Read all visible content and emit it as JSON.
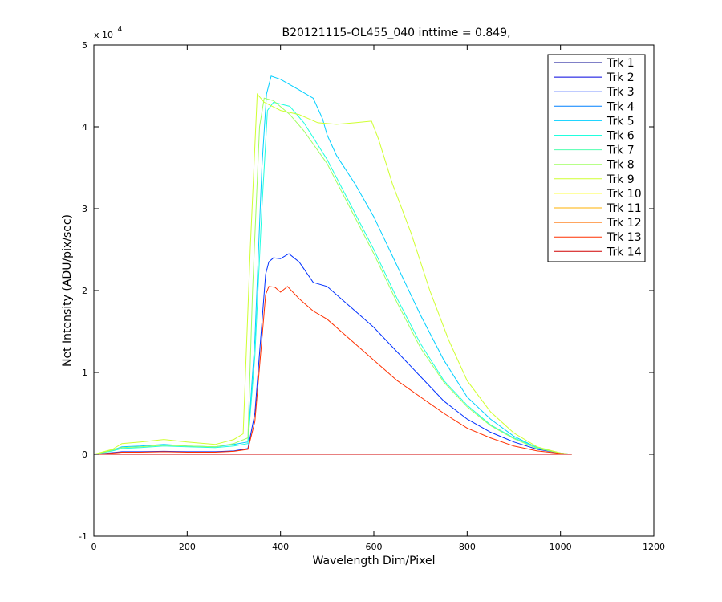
{
  "chart_data": {
    "type": "line",
    "title": "B20121115-OL455_040 inttime = 0.849,",
    "xlabel": "Wavelength Dim/Pixel",
    "ylabel": "Net Intensity (ADU/pix/sec)",
    "xlim": [
      0,
      1200
    ],
    "ylim": [
      -10000,
      50000
    ],
    "x_ticks": [
      0,
      200,
      400,
      600,
      800,
      1000,
      1200
    ],
    "y_ticks": [
      -1,
      0,
      1,
      2,
      3,
      4,
      5
    ],
    "y_tick_multiplier_base": "x 10",
    "y_tick_multiplier_exp": "4",
    "y_tick_scale": 10000,
    "grid": false,
    "legend_position": "top-right",
    "series": [
      {
        "name": "Trk 1",
        "color": "#00008f",
        "points": [
          [
            0,
            0
          ],
          [
            1024,
            0
          ]
        ]
      },
      {
        "name": "Trk 2",
        "color": "#0000df",
        "points": [
          [
            0,
            0
          ],
          [
            1024,
            0
          ]
        ]
      },
      {
        "name": "Trk 3",
        "color": "#0030ff",
        "points": [
          [
            0,
            0
          ],
          [
            40,
            200
          ],
          [
            60,
            300
          ],
          [
            100,
            300
          ],
          [
            150,
            350
          ],
          [
            200,
            300
          ],
          [
            260,
            300
          ],
          [
            300,
            400
          ],
          [
            330,
            700
          ],
          [
            345,
            5000
          ],
          [
            360,
            16000
          ],
          [
            368,
            22000
          ],
          [
            375,
            23500
          ],
          [
            385,
            24000
          ],
          [
            400,
            23900
          ],
          [
            418,
            24500
          ],
          [
            440,
            23500
          ],
          [
            470,
            21000
          ],
          [
            500,
            20500
          ],
          [
            550,
            18000
          ],
          [
            600,
            15500
          ],
          [
            650,
            12500
          ],
          [
            700,
            9500
          ],
          [
            750,
            6500
          ],
          [
            800,
            4300
          ],
          [
            850,
            2700
          ],
          [
            900,
            1500
          ],
          [
            950,
            600
          ],
          [
            1000,
            150
          ],
          [
            1024,
            0
          ]
        ]
      },
      {
        "name": "Trk 4",
        "color": "#0080ff",
        "points": [
          [
            0,
            0
          ],
          [
            1024,
            0
          ]
        ]
      },
      {
        "name": "Trk 5",
        "color": "#00cfff",
        "points": [
          [
            0,
            0
          ],
          [
            40,
            500
          ],
          [
            60,
            900
          ],
          [
            100,
            1000
          ],
          [
            150,
            1200
          ],
          [
            200,
            1000
          ],
          [
            260,
            900
          ],
          [
            300,
            1200
          ],
          [
            330,
            1500
          ],
          [
            345,
            14000
          ],
          [
            360,
            35000
          ],
          [
            370,
            44000
          ],
          [
            380,
            46200
          ],
          [
            400,
            45800
          ],
          [
            440,
            44500
          ],
          [
            470,
            43500
          ],
          [
            490,
            41000
          ],
          [
            500,
            39000
          ],
          [
            520,
            36500
          ],
          [
            560,
            33000
          ],
          [
            600,
            29000
          ],
          [
            650,
            23000
          ],
          [
            700,
            17000
          ],
          [
            750,
            11500
          ],
          [
            800,
            7000
          ],
          [
            850,
            4300
          ],
          [
            900,
            2200
          ],
          [
            950,
            800
          ],
          [
            1000,
            150
          ],
          [
            1024,
            0
          ]
        ]
      },
      {
        "name": "Trk 6",
        "color": "#20ffdf",
        "points": [
          [
            0,
            0
          ],
          [
            40,
            400
          ],
          [
            60,
            700
          ],
          [
            100,
            800
          ],
          [
            150,
            1000
          ],
          [
            200,
            900
          ],
          [
            260,
            800
          ],
          [
            300,
            1000
          ],
          [
            330,
            1300
          ],
          [
            345,
            12000
          ],
          [
            360,
            30000
          ],
          [
            372,
            42000
          ],
          [
            385,
            43000
          ],
          [
            420,
            42500
          ],
          [
            450,
            40500
          ],
          [
            500,
            36000
          ],
          [
            550,
            30500
          ],
          [
            600,
            25000
          ],
          [
            650,
            19000
          ],
          [
            700,
            13500
          ],
          [
            750,
            9000
          ],
          [
            800,
            6000
          ],
          [
            850,
            3600
          ],
          [
            900,
            2000
          ],
          [
            950,
            800
          ],
          [
            1000,
            150
          ],
          [
            1024,
            0
          ]
        ]
      },
      {
        "name": "Trk 7",
        "color": "#50ffaf",
        "points": [
          [
            0,
            0
          ],
          [
            1024,
            0
          ]
        ]
      },
      {
        "name": "Trk 8",
        "color": "#9fff60",
        "points": [
          [
            0,
            0
          ],
          [
            40,
            500
          ],
          [
            60,
            800
          ],
          [
            100,
            900
          ],
          [
            150,
            1100
          ],
          [
            200,
            1000
          ],
          [
            260,
            900
          ],
          [
            300,
            1300
          ],
          [
            330,
            2000
          ],
          [
            340,
            20000
          ],
          [
            355,
            40000
          ],
          [
            365,
            43500
          ],
          [
            385,
            43200
          ],
          [
            420,
            41500
          ],
          [
            450,
            39500
          ],
          [
            500,
            35500
          ],
          [
            550,
            30000
          ],
          [
            600,
            24500
          ],
          [
            650,
            18500
          ],
          [
            700,
            13000
          ],
          [
            750,
            8800
          ],
          [
            800,
            5800
          ],
          [
            850,
            3500
          ],
          [
            900,
            1900
          ],
          [
            950,
            700
          ],
          [
            1000,
            150
          ],
          [
            1024,
            0
          ]
        ]
      },
      {
        "name": "Trk 9",
        "color": "#cfff30",
        "points": [
          [
            0,
            0
          ],
          [
            40,
            600
          ],
          [
            60,
            1300
          ],
          [
            100,
            1500
          ],
          [
            150,
            1800
          ],
          [
            200,
            1500
          ],
          [
            260,
            1200
          ],
          [
            300,
            1800
          ],
          [
            320,
            2500
          ],
          [
            335,
            25000
          ],
          [
            350,
            44000
          ],
          [
            365,
            43000
          ],
          [
            400,
            42000
          ],
          [
            440,
            41500
          ],
          [
            480,
            40500
          ],
          [
            520,
            40300
          ],
          [
            560,
            40500
          ],
          [
            595,
            40700
          ],
          [
            610,
            38500
          ],
          [
            640,
            33000
          ],
          [
            680,
            27000
          ],
          [
            720,
            20000
          ],
          [
            760,
            14000
          ],
          [
            800,
            9000
          ],
          [
            850,
            5200
          ],
          [
            900,
            2600
          ],
          [
            950,
            900
          ],
          [
            1000,
            150
          ],
          [
            1024,
            0
          ]
        ]
      },
      {
        "name": "Trk 10",
        "color": "#ffff00",
        "points": [
          [
            0,
            0
          ],
          [
            1024,
            0
          ]
        ]
      },
      {
        "name": "Trk 11",
        "color": "#ffb000",
        "points": [
          [
            0,
            0
          ],
          [
            1024,
            0
          ]
        ]
      },
      {
        "name": "Trk 12",
        "color": "#ff7000",
        "points": [
          [
            0,
            0
          ],
          [
            1024,
            0
          ]
        ]
      },
      {
        "name": "Trk 13",
        "color": "#ff3000",
        "points": [
          [
            0,
            0
          ],
          [
            40,
            150
          ],
          [
            60,
            250
          ],
          [
            100,
            250
          ],
          [
            150,
            300
          ],
          [
            200,
            250
          ],
          [
            260,
            250
          ],
          [
            300,
            350
          ],
          [
            330,
            600
          ],
          [
            345,
            4000
          ],
          [
            360,
            14000
          ],
          [
            368,
            19500
          ],
          [
            375,
            20500
          ],
          [
            388,
            20400
          ],
          [
            400,
            19800
          ],
          [
            415,
            20500
          ],
          [
            440,
            19000
          ],
          [
            470,
            17500
          ],
          [
            500,
            16500
          ],
          [
            550,
            14000
          ],
          [
            600,
            11500
          ],
          [
            650,
            9000
          ],
          [
            700,
            7000
          ],
          [
            750,
            5000
          ],
          [
            800,
            3200
          ],
          [
            850,
            2000
          ],
          [
            900,
            1000
          ],
          [
            950,
            400
          ],
          [
            1000,
            100
          ],
          [
            1024,
            0
          ]
        ]
      },
      {
        "name": "Trk 14",
        "color": "#d00000",
        "points": [
          [
            0,
            0
          ],
          [
            1024,
            0
          ]
        ]
      }
    ]
  }
}
